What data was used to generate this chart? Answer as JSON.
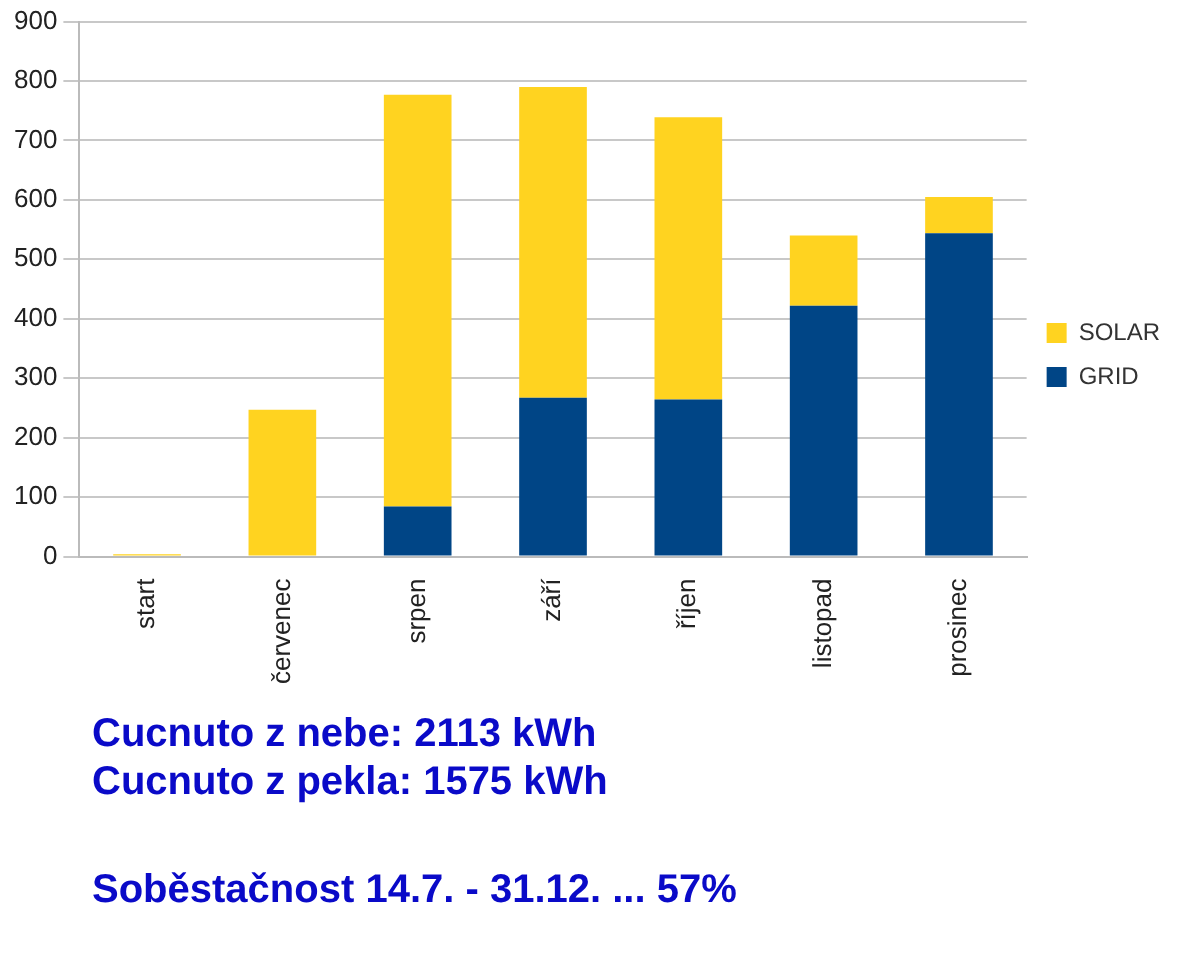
{
  "chart_data": {
    "type": "bar",
    "stacked": true,
    "categories": [
      "start",
      "červenec",
      "srpen",
      "září",
      "říjen",
      "listopad",
      "prosinec"
    ],
    "series": [
      {
        "name": "GRID",
        "color": "#004586",
        "values": [
          0,
          0,
          84,
          267,
          264,
          422,
          544
        ]
      },
      {
        "name": "SOLAR",
        "color": "#ffd320",
        "values": [
          4,
          247,
          693,
          523,
          475,
          118,
          61
        ]
      }
    ],
    "ylim": [
      0,
      900
    ],
    "yticks": [
      0,
      100,
      200,
      300,
      400,
      500,
      600,
      700,
      800,
      900
    ],
    "grid": "y",
    "legend": "right",
    "annotations": [
      "Cucnuto z nebe: 2113 kWh",
      "Cucnuto z pekla: 1575 kWh",
      "Soběstačnost 14.7. - 31.12. ... 57%"
    ]
  }
}
